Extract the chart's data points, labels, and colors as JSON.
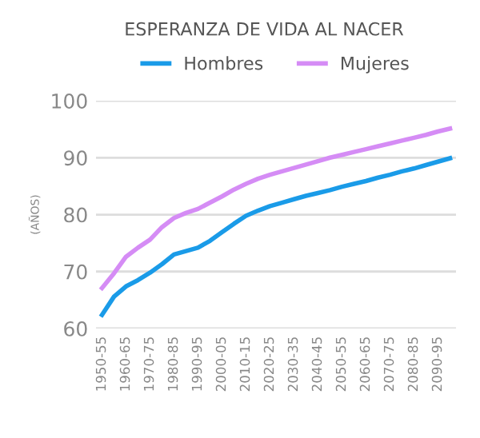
{
  "chart_data": {
    "type": "line",
    "title": "ESPERANZA DE VIDA AL NACER",
    "ylabel": "(AÑOS)",
    "categories": [
      "1950-55",
      null,
      "1960-65",
      null,
      "1970-75",
      null,
      "1980-85",
      null,
      "1990-95",
      null,
      "2000-05",
      null,
      "2010-15",
      null,
      "2020-25",
      null,
      "2030-35",
      null,
      "2040-45",
      null,
      "2050-55",
      null,
      "2060-65",
      null,
      "2070-75",
      null,
      "2080-85",
      null,
      "2090-95",
      null
    ],
    "series": [
      {
        "name": "Hombres",
        "color": "#1a9be8",
        "values": [
          62.4,
          65.6,
          67.4,
          68.5,
          69.8,
          71.3,
          73.0,
          73.6,
          74.2,
          75.4,
          76.9,
          78.4,
          79.8,
          80.7,
          81.5,
          82.1,
          82.7,
          83.3,
          83.8,
          84.3,
          84.9,
          85.4,
          85.9,
          86.5,
          87.0,
          87.6,
          88.1,
          88.7,
          89.3,
          89.9
        ]
      },
      {
        "name": "Mujeres",
        "color": "#d58cf5",
        "values": [
          67.1,
          69.7,
          72.6,
          74.2,
          75.6,
          77.8,
          79.4,
          80.3,
          81.0,
          82.1,
          83.2,
          84.4,
          85.4,
          86.3,
          87.0,
          87.6,
          88.2,
          88.8,
          89.4,
          90.0,
          90.5,
          91.0,
          91.5,
          92.0,
          92.5,
          93.0,
          93.5,
          94.0,
          94.6,
          95.1
        ]
      }
    ],
    "ylim": [
      60,
      100
    ],
    "yticks": [
      60,
      70,
      80,
      90,
      100
    ],
    "grid": "y",
    "legend": "top"
  }
}
